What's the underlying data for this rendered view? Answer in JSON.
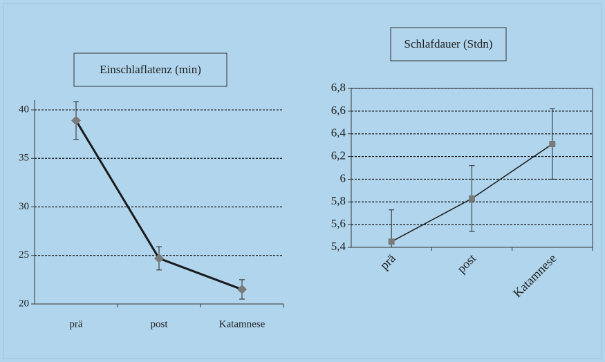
{
  "chart_data": [
    {
      "type": "line",
      "title": "Einschlaflatenz (min)",
      "categories": [
        "prä",
        "post",
        "Katamnese"
      ],
      "values": [
        38.9,
        24.7,
        21.5
      ],
      "errors": [
        1.95,
        1.2,
        1.0
      ],
      "color": "#1a1a1a",
      "marker": "diamond",
      "marker_color": "#7a7a7a",
      "ylim": [
        20,
        41
      ],
      "yticks": [
        20,
        25,
        30,
        35,
        40
      ],
      "grid": true
    },
    {
      "type": "line",
      "title": "Schlafdauer (Stdn)",
      "categories": [
        "prä",
        "post",
        "Katamnese"
      ],
      "values": [
        5.45,
        5.83,
        6.31
      ],
      "errors": [
        0.28,
        0.29,
        0.31
      ],
      "color": "#1a1a1a",
      "marker": "square",
      "marker_color": "#7a7a7a",
      "ylim": [
        5.4,
        6.8
      ],
      "yticks": [
        {
          "value": 5.4,
          "label": "5,4"
        },
        {
          "value": 5.6,
          "label": "5,6"
        },
        {
          "value": 5.8,
          "label": "5,8"
        },
        6,
        {
          "value": 6.2,
          "label": "6,2"
        },
        {
          "value": 6.4,
          "label": "6,4"
        },
        {
          "value": 6.6,
          "label": "6,6"
        },
        {
          "value": 6.8,
          "label": "6,8"
        }
      ],
      "grid": true
    }
  ]
}
